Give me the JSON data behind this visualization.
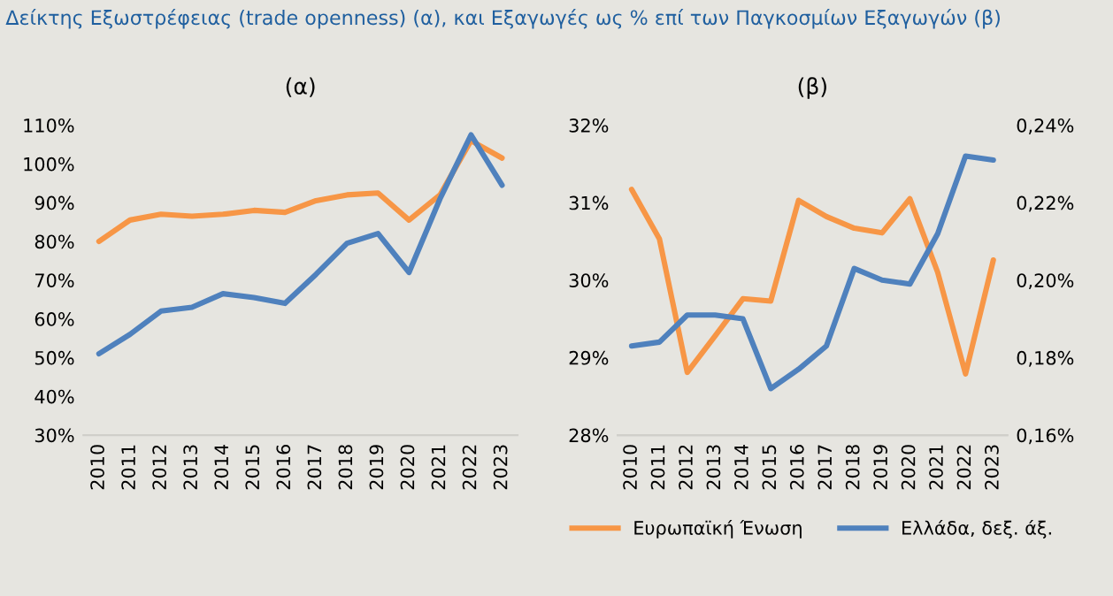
{
  "chart_data": [
    {
      "type": "line",
      "title": "Δείκτης Εξωστρέφειας (trade openness) (α), και Εξαγωγές ως % επί των Παγκοσμίων Εξαγωγών (β)",
      "subtitle": "(α)",
      "categories": [
        "2010",
        "2011",
        "2012",
        "2013",
        "2014",
        "2015",
        "2016",
        "2017",
        "2018",
        "2019",
        "2020",
        "2021",
        "2022",
        "2023"
      ],
      "series": [
        {
          "color": "#f79646",
          "values": [
            80,
            85.5,
            87,
            86.5,
            87,
            88,
            87.5,
            90.5,
            92,
            92.5,
            85.5,
            92,
            106,
            101.5
          ]
        },
        {
          "color": "#4f81bd",
          "values": [
            51,
            56,
            62,
            63,
            66.5,
            65.5,
            64,
            71.5,
            79.5,
            82,
            72,
            91,
            107.5,
            94.5
          ]
        }
      ],
      "ylim": [
        30,
        110
      ],
      "yticks": [
        {
          "value": 30,
          "label": "30%"
        },
        {
          "value": 40,
          "label": "40%"
        },
        {
          "value": 50,
          "label": "50%"
        },
        {
          "value": 60,
          "label": "60%"
        },
        {
          "value": 70,
          "label": "70%"
        },
        {
          "value": 80,
          "label": "80%"
        },
        {
          "value": 90,
          "label": "90%"
        },
        {
          "value": 100,
          "label": "100%"
        },
        {
          "value": 110,
          "label": "110%"
        }
      ],
      "grid": false,
      "legend": false
    },
    {
      "type": "line",
      "subtitle": "(β)",
      "categories": [
        "2010",
        "2011",
        "2012",
        "2013",
        "2014",
        "2015",
        "2016",
        "2017",
        "2018",
        "2019",
        "2020",
        "2021",
        "2022",
        "2023"
      ],
      "series": [
        {
          "name": "Ευρωπαϊκή Ένωση",
          "color": "#f79646",
          "values": [
            31.17,
            30.53,
            28.81,
            29.28,
            29.76,
            29.73,
            31.03,
            30.82,
            30.67,
            30.61,
            31.05,
            30.1,
            28.79,
            30.26
          ]
        },
        {
          "name": "Ελλάδα, δεξ. άξ.",
          "color": "#4f81bd",
          "axis": "y2",
          "values": [
            0.183,
            0.184,
            0.191,
            0.191,
            0.19,
            0.172,
            0.177,
            0.183,
            0.203,
            0.2,
            0.199,
            0.212,
            0.232,
            0.231
          ]
        }
      ],
      "ylim": [
        28,
        32
      ],
      "yticks": [
        {
          "value": 28,
          "label": "28%"
        },
        {
          "value": 29,
          "label": "29%"
        },
        {
          "value": 30,
          "label": "30%"
        },
        {
          "value": 31,
          "label": "31%"
        },
        {
          "value": 32,
          "label": "32%"
        }
      ],
      "y2lim": [
        0.16,
        0.24
      ],
      "y2ticks": [
        {
          "value": 0.16,
          "label": "0,16%"
        },
        {
          "value": 0.18,
          "label": "0,18%"
        },
        {
          "value": 0.2,
          "label": "0,20%"
        },
        {
          "value": 0.22,
          "label": "0,22%"
        },
        {
          "value": 0.24,
          "label": "0,24%"
        }
      ],
      "grid": false,
      "legend": "bottom"
    }
  ]
}
